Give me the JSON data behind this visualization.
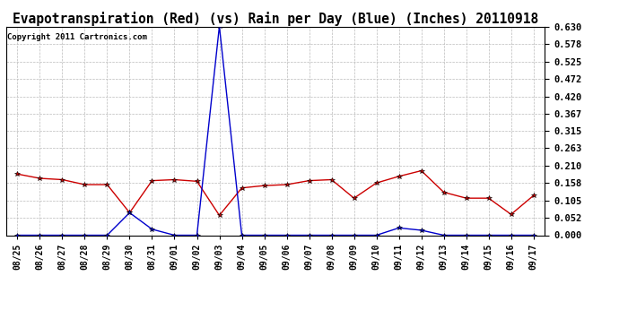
{
  "title": "Evapotranspiration (Red) (vs) Rain per Day (Blue) (Inches) 20110918",
  "copyright": "Copyright 2011 Cartronics.com",
  "x_labels": [
    "08/25",
    "08/26",
    "08/27",
    "08/28",
    "08/29",
    "08/30",
    "08/31",
    "09/01",
    "09/02",
    "09/03",
    "09/04",
    "09/05",
    "09/06",
    "09/07",
    "09/08",
    "09/09",
    "09/10",
    "09/11",
    "09/12",
    "09/13",
    "09/14",
    "09/15",
    "09/16",
    "09/17"
  ],
  "red_data": [
    0.185,
    0.172,
    0.168,
    0.153,
    0.153,
    0.068,
    0.165,
    0.168,
    0.163,
    0.06,
    0.143,
    0.15,
    0.153,
    0.165,
    0.168,
    0.112,
    0.158,
    0.178,
    0.195,
    0.13,
    0.112,
    0.112,
    0.063,
    0.12
  ],
  "blue_data": [
    0.0,
    0.0,
    0.0,
    0.0,
    0.0,
    0.068,
    0.018,
    0.0,
    0.0,
    0.632,
    0.0,
    0.0,
    0.0,
    0.0,
    0.0,
    0.0,
    0.0,
    0.022,
    0.015,
    0.0,
    0.0,
    0.0,
    0.0,
    0.0
  ],
  "y_ticks": [
    0.0,
    0.052,
    0.105,
    0.158,
    0.21,
    0.263,
    0.315,
    0.367,
    0.42,
    0.472,
    0.525,
    0.578,
    0.63
  ],
  "ymin": 0.0,
  "ymax": 0.63,
  "red_color": "#cc0000",
  "blue_color": "#0000cc",
  "grid_color": "#bbbbbb",
  "bg_color": "#ffffff",
  "plot_bg_color": "#ffffff",
  "title_fontsize": 10.5,
  "copyright_fontsize": 6.5,
  "tick_fontsize": 7.5,
  "x_tick_fontsize": 7.0
}
